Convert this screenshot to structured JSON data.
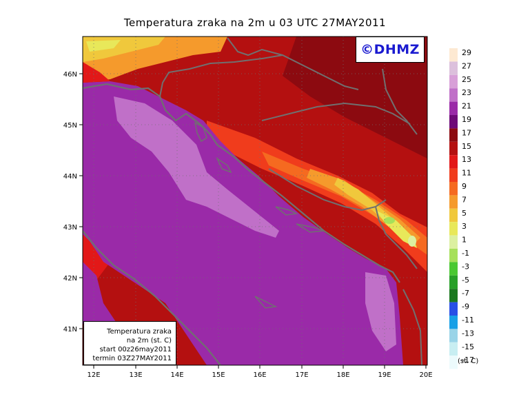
{
  "title": "Temperatura zraka na 2m u 03 UTC 27MAY2011",
  "logo": "©DHMZ",
  "info_box": {
    "line1": "Temperatura zraka",
    "line2": "na 2m (st. C)",
    "line3": "start 00z26may2011",
    "line4": "termin 03Z27MAY2011"
  },
  "axes": {
    "lon_ticks": [
      "12E",
      "13E",
      "14E",
      "15E",
      "16E",
      "17E",
      "18E",
      "19E",
      "20E"
    ],
    "lat_ticks": [
      "41N",
      "42N",
      "43N",
      "44N",
      "45N",
      "46N"
    ]
  },
  "legend": {
    "unit": "(st. C)",
    "labels": [
      "29",
      "27",
      "25",
      "23",
      "21",
      "19",
      "17",
      "15",
      "13",
      "11",
      "9",
      "7",
      "5",
      "3",
      "1",
      "-1",
      "-3",
      "-5",
      "-7",
      "-9",
      "-11",
      "-13",
      "-15",
      "-17"
    ],
    "colors": [
      "#fde9d2",
      "#dcc0dc",
      "#d8a0d8",
      "#c070c8",
      "#9a2aa8",
      "#6e0a78",
      "#8c0a10",
      "#b41010",
      "#e21818",
      "#f03c1c",
      "#f56a20",
      "#f59a2c",
      "#f0c83c",
      "#e8e85a",
      "#dcf0a0",
      "#a6e05a",
      "#4ac832",
      "#28a028",
      "#1a781e",
      "#2850e6",
      "#18a0e6",
      "#9ad4e8",
      "#c8eef2",
      "#ecfafc"
    ]
  },
  "map": {
    "sea_color": "#9a2aa8",
    "sea_light_color": "#c070c8",
    "border_color": "#707070"
  }
}
